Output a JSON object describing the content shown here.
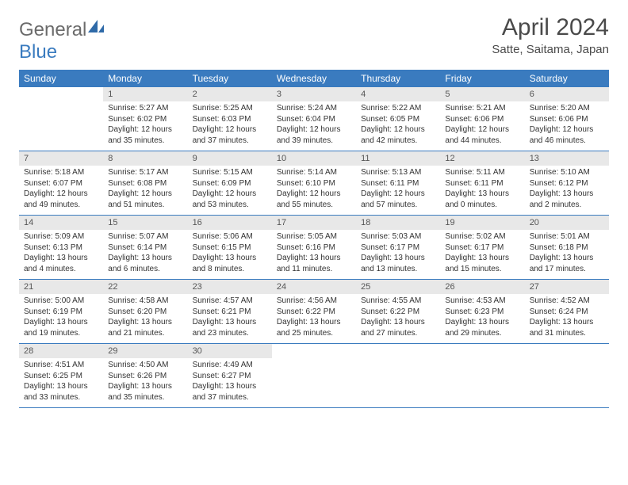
{
  "header": {
    "logo_part1": "General",
    "logo_part2": "Blue",
    "title": "April 2024",
    "location": "Satte, Saitama, Japan"
  },
  "colors": {
    "header_bg": "#3a7bbf",
    "daynum_bg": "#e8e8e8",
    "text": "#333333",
    "logo_gray": "#6b6b6b",
    "logo_blue": "#3a7bbf"
  },
  "daynames": [
    "Sunday",
    "Monday",
    "Tuesday",
    "Wednesday",
    "Thursday",
    "Friday",
    "Saturday"
  ],
  "weeks": [
    {
      "nums": [
        "",
        "1",
        "2",
        "3",
        "4",
        "5",
        "6"
      ],
      "cells": [
        {
          "empty": true
        },
        {
          "sunrise": "5:27 AM",
          "sunset": "6:02 PM",
          "daylight": "12 hours and 35 minutes."
        },
        {
          "sunrise": "5:25 AM",
          "sunset": "6:03 PM",
          "daylight": "12 hours and 37 minutes."
        },
        {
          "sunrise": "5:24 AM",
          "sunset": "6:04 PM",
          "daylight": "12 hours and 39 minutes."
        },
        {
          "sunrise": "5:22 AM",
          "sunset": "6:05 PM",
          "daylight": "12 hours and 42 minutes."
        },
        {
          "sunrise": "5:21 AM",
          "sunset": "6:06 PM",
          "daylight": "12 hours and 44 minutes."
        },
        {
          "sunrise": "5:20 AM",
          "sunset": "6:06 PM",
          "daylight": "12 hours and 46 minutes."
        }
      ]
    },
    {
      "nums": [
        "7",
        "8",
        "9",
        "10",
        "11",
        "12",
        "13"
      ],
      "cells": [
        {
          "sunrise": "5:18 AM",
          "sunset": "6:07 PM",
          "daylight": "12 hours and 49 minutes."
        },
        {
          "sunrise": "5:17 AM",
          "sunset": "6:08 PM",
          "daylight": "12 hours and 51 minutes."
        },
        {
          "sunrise": "5:15 AM",
          "sunset": "6:09 PM",
          "daylight": "12 hours and 53 minutes."
        },
        {
          "sunrise": "5:14 AM",
          "sunset": "6:10 PM",
          "daylight": "12 hours and 55 minutes."
        },
        {
          "sunrise": "5:13 AM",
          "sunset": "6:11 PM",
          "daylight": "12 hours and 57 minutes."
        },
        {
          "sunrise": "5:11 AM",
          "sunset": "6:11 PM",
          "daylight": "13 hours and 0 minutes."
        },
        {
          "sunrise": "5:10 AM",
          "sunset": "6:12 PM",
          "daylight": "13 hours and 2 minutes."
        }
      ]
    },
    {
      "nums": [
        "14",
        "15",
        "16",
        "17",
        "18",
        "19",
        "20"
      ],
      "cells": [
        {
          "sunrise": "5:09 AM",
          "sunset": "6:13 PM",
          "daylight": "13 hours and 4 minutes."
        },
        {
          "sunrise": "5:07 AM",
          "sunset": "6:14 PM",
          "daylight": "13 hours and 6 minutes."
        },
        {
          "sunrise": "5:06 AM",
          "sunset": "6:15 PM",
          "daylight": "13 hours and 8 minutes."
        },
        {
          "sunrise": "5:05 AM",
          "sunset": "6:16 PM",
          "daylight": "13 hours and 11 minutes."
        },
        {
          "sunrise": "5:03 AM",
          "sunset": "6:17 PM",
          "daylight": "13 hours and 13 minutes."
        },
        {
          "sunrise": "5:02 AM",
          "sunset": "6:17 PM",
          "daylight": "13 hours and 15 minutes."
        },
        {
          "sunrise": "5:01 AM",
          "sunset": "6:18 PM",
          "daylight": "13 hours and 17 minutes."
        }
      ]
    },
    {
      "nums": [
        "21",
        "22",
        "23",
        "24",
        "25",
        "26",
        "27"
      ],
      "cells": [
        {
          "sunrise": "5:00 AM",
          "sunset": "6:19 PM",
          "daylight": "13 hours and 19 minutes."
        },
        {
          "sunrise": "4:58 AM",
          "sunset": "6:20 PM",
          "daylight": "13 hours and 21 minutes."
        },
        {
          "sunrise": "4:57 AM",
          "sunset": "6:21 PM",
          "daylight": "13 hours and 23 minutes."
        },
        {
          "sunrise": "4:56 AM",
          "sunset": "6:22 PM",
          "daylight": "13 hours and 25 minutes."
        },
        {
          "sunrise": "4:55 AM",
          "sunset": "6:22 PM",
          "daylight": "13 hours and 27 minutes."
        },
        {
          "sunrise": "4:53 AM",
          "sunset": "6:23 PM",
          "daylight": "13 hours and 29 minutes."
        },
        {
          "sunrise": "4:52 AM",
          "sunset": "6:24 PM",
          "daylight": "13 hours and 31 minutes."
        }
      ]
    },
    {
      "nums": [
        "28",
        "29",
        "30",
        "",
        "",
        "",
        ""
      ],
      "cells": [
        {
          "sunrise": "4:51 AM",
          "sunset": "6:25 PM",
          "daylight": "13 hours and 33 minutes."
        },
        {
          "sunrise": "4:50 AM",
          "sunset": "6:26 PM",
          "daylight": "13 hours and 35 minutes."
        },
        {
          "sunrise": "4:49 AM",
          "sunset": "6:27 PM",
          "daylight": "13 hours and 37 minutes."
        },
        {
          "empty": true
        },
        {
          "empty": true
        },
        {
          "empty": true
        },
        {
          "empty": true
        }
      ]
    }
  ],
  "labels": {
    "sunrise": "Sunrise: ",
    "sunset": "Sunset: ",
    "daylight": "Daylight: "
  }
}
